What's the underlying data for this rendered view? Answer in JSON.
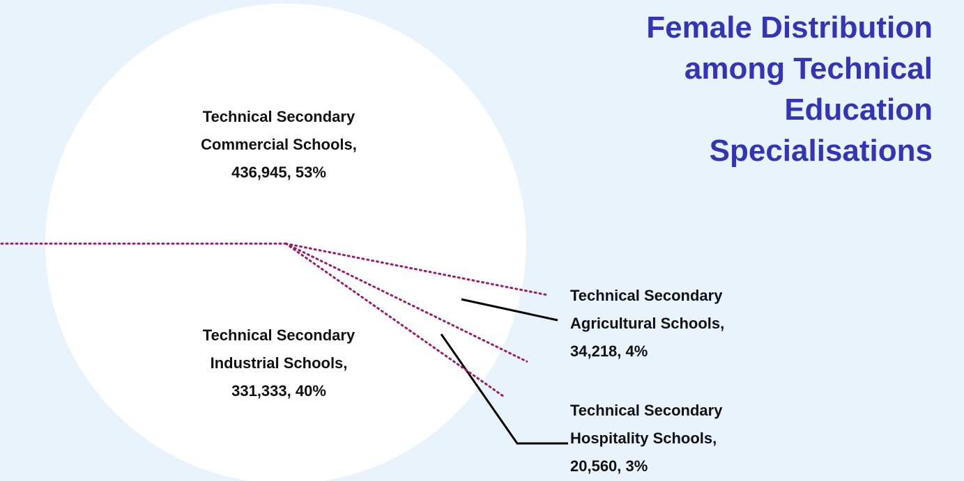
{
  "chart_data": {
    "type": "pie",
    "title": "Female Distribution among Technical Education Specialisations",
    "categories": [
      "Technical Secondary Commercial Schools,",
      "Technical Secondary Agricultural Schools,",
      "Technical Secondary Hospitality Schools,",
      "Technical Secondary Industrial Schools,"
    ],
    "values": [
      436945,
      34218,
      20560,
      331333
    ],
    "value_labels": [
      "436,945, 53%",
      "34,218, 4%",
      "20,560, 3%",
      "331,333, 40%"
    ],
    "color": "#ffffff"
  }
}
